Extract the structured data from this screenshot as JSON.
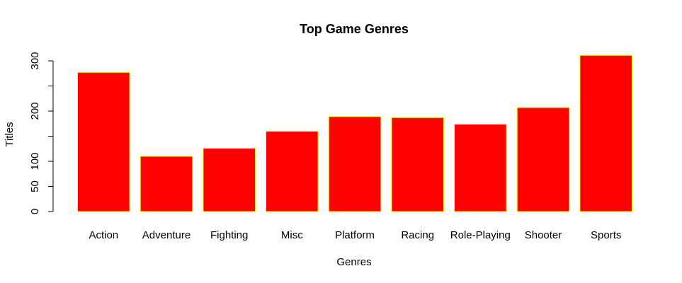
{
  "chart_data": {
    "type": "bar",
    "title": "Top Game Genres",
    "xlabel": "Genres",
    "ylabel": "Titles",
    "categories": [
      "Action",
      "Adventure",
      "Fighting",
      "Misc",
      "Platform",
      "Racing",
      "Role-Playing",
      "Shooter",
      "Sports"
    ],
    "values": [
      277,
      110,
      126,
      160,
      189,
      187,
      174,
      207,
      311
    ],
    "ylim": [
      0,
      300
    ],
    "yticks": [
      0,
      50,
      100,
      200,
      300
    ],
    "yticks_unlabeled": [
      150,
      250
    ],
    "grid": false,
    "bar_fill": "#ff0000",
    "bar_stroke": "#ffff00"
  }
}
